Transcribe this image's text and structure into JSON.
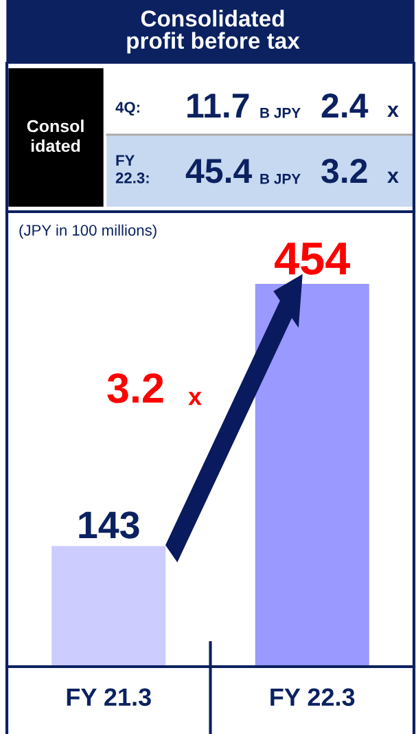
{
  "chart_data": {
    "type": "bar",
    "title": "Consolidated\nprofit before tax",
    "categories": [
      "FY 21.3",
      "FY 22.3"
    ],
    "values": [
      143,
      454
    ],
    "colors": [
      "#ccccff",
      "#9999ff"
    ],
    "data_labels": true,
    "grid": false,
    "legend": false,
    "annotations": [
      "Consol\nidated",
      "4Q:",
      "11.7",
      "B JPY",
      "2.4",
      "x",
      "FY\n22.3:",
      "45.4",
      "B JPY",
      "3.2",
      "x",
      "(JPY in 100 millions)",
      "3.2",
      "x"
    ]
  }
}
